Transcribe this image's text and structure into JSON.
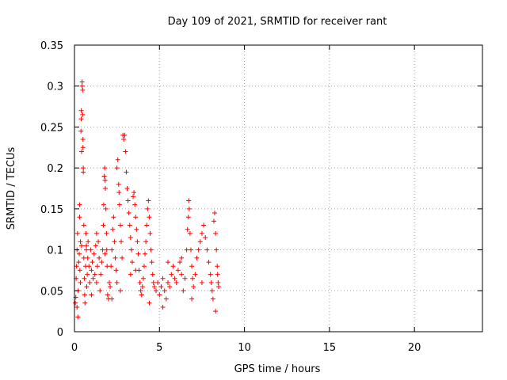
{
  "chart_data": {
    "type": "scatter",
    "title": "Day 109 of 2021, SRMTID for receiver rant",
    "xlabel": "GPS time / hours",
    "ylabel": "SRMTID / TECUs",
    "xlim": [
      0,
      24
    ],
    "ylim": [
      0,
      0.35
    ],
    "x_ticks": [
      0,
      5,
      10,
      15,
      20
    ],
    "y_ticks": [
      0,
      0.05,
      0.1,
      0.15,
      0.2,
      0.25,
      0.3,
      0.35
    ],
    "x_tick_labels": [
      "0",
      "5",
      "10",
      "15",
      "20"
    ],
    "y_tick_labels": [
      "0",
      "0.05",
      "0.1",
      "0.15",
      "0.2",
      "0.25",
      "0.3",
      "0.35"
    ],
    "grid": true,
    "marker": "+",
    "color": "#ff0000",
    "series": [
      {
        "points": [
          [
            0.05,
            0.035
          ],
          [
            0.08,
            0.042
          ],
          [
            0.1,
            0.065
          ],
          [
            0.12,
            0.08
          ],
          [
            0.15,
            0.1
          ],
          [
            0.15,
            0.03
          ],
          [
            0.18,
            0.12
          ],
          [
            0.2,
            0.018
          ],
          [
            0.22,
            0.05
          ],
          [
            0.25,
            0.085
          ],
          [
            0.28,
            0.095
          ],
          [
            0.3,
            0.14
          ],
          [
            0.3,
            0.155
          ],
          [
            0.32,
            0.075
          ],
          [
            0.35,
            0.11
          ],
          [
            0.35,
            0.06
          ],
          [
            0.38,
            0.245
          ],
          [
            0.4,
            0.27
          ],
          [
            0.4,
            0.26
          ],
          [
            0.42,
            0.22
          ],
          [
            0.42,
            0.105
          ],
          [
            0.45,
            0.3
          ],
          [
            0.45,
            0.305
          ],
          [
            0.48,
            0.295
          ],
          [
            0.48,
            0.265
          ],
          [
            0.5,
            0.235
          ],
          [
            0.5,
            0.225
          ],
          [
            0.52,
            0.195
          ],
          [
            0.52,
            0.2
          ],
          [
            0.55,
            0.13
          ],
          [
            0.55,
            0.09
          ],
          [
            0.58,
            0.065
          ],
          [
            0.6,
            0.045
          ],
          [
            0.62,
            0.035
          ],
          [
            0.65,
            0.08
          ],
          [
            0.68,
            0.12
          ],
          [
            0.7,
            0.1
          ],
          [
            0.72,
            0.055
          ],
          [
            0.75,
            0.07
          ],
          [
            0.78,
            0.09
          ],
          [
            0.8,
            0.11
          ],
          [
            0.85,
            0.08
          ],
          [
            0.9,
            0.06
          ],
          [
            0.95,
            0.1
          ],
          [
            1.0,
            0.075
          ],
          [
            1.05,
            0.085
          ],
          [
            1.1,
            0.065
          ],
          [
            1.15,
            0.095
          ],
          [
            1.2,
            0.07
          ],
          [
            1.25,
            0.105
          ],
          [
            1.3,
            0.06
          ],
          [
            1.35,
            0.08
          ],
          [
            1.4,
            0.11
          ],
          [
            1.45,
            0.09
          ],
          [
            1.5,
            0.05
          ],
          [
            1.55,
            0.07
          ],
          [
            1.6,
            0.085
          ],
          [
            1.65,
            0.1
          ],
          [
            1.7,
            0.13
          ],
          [
            1.72,
            0.155
          ],
          [
            1.75,
            0.19
          ],
          [
            1.78,
            0.2
          ],
          [
            1.8,
            0.185
          ],
          [
            1.82,
            0.175
          ],
          [
            1.85,
            0.15
          ],
          [
            1.88,
            0.12
          ],
          [
            1.9,
            0.1
          ],
          [
            1.92,
            0.08
          ],
          [
            1.95,
            0.045
          ],
          [
            2.0,
            0.04
          ],
          [
            2.05,
            0.06
          ],
          [
            2.1,
            0.055
          ],
          [
            2.15,
            0.08
          ],
          [
            2.2,
            0.1
          ],
          [
            2.25,
            0.125
          ],
          [
            2.3,
            0.14
          ],
          [
            2.35,
            0.11
          ],
          [
            2.4,
            0.09
          ],
          [
            2.45,
            0.075
          ],
          [
            2.5,
            0.06
          ],
          [
            2.5,
            0.2
          ],
          [
            2.55,
            0.21
          ],
          [
            2.6,
            0.18
          ],
          [
            2.62,
            0.17
          ],
          [
            2.65,
            0.155
          ],
          [
            2.7,
            0.13
          ],
          [
            2.75,
            0.11
          ],
          [
            2.8,
            0.09
          ],
          [
            2.85,
            0.24
          ],
          [
            2.9,
            0.235
          ],
          [
            2.95,
            0.24
          ],
          [
            3.0,
            0.22
          ],
          [
            3.05,
            0.195
          ],
          [
            3.1,
            0.175
          ],
          [
            3.15,
            0.16
          ],
          [
            3.2,
            0.145
          ],
          [
            3.25,
            0.13
          ],
          [
            3.3,
            0.115
          ],
          [
            3.35,
            0.1
          ],
          [
            3.4,
            0.085
          ],
          [
            3.45,
            0.165
          ],
          [
            3.5,
            0.17
          ],
          [
            3.55,
            0.155
          ],
          [
            3.6,
            0.14
          ],
          [
            3.65,
            0.125
          ],
          [
            3.7,
            0.11
          ],
          [
            3.75,
            0.095
          ],
          [
            3.8,
            0.075
          ],
          [
            3.85,
            0.06
          ],
          [
            3.9,
            0.05
          ],
          [
            3.95,
            0.045
          ],
          [
            4.0,
            0.055
          ],
          [
            4.05,
            0.065
          ],
          [
            4.1,
            0.08
          ],
          [
            4.15,
            0.095
          ],
          [
            4.2,
            0.11
          ],
          [
            4.25,
            0.13
          ],
          [
            4.3,
            0.15
          ],
          [
            4.35,
            0.16
          ],
          [
            4.4,
            0.14
          ],
          [
            4.45,
            0.12
          ],
          [
            4.5,
            0.1
          ],
          [
            4.55,
            0.085
          ],
          [
            4.6,
            0.07
          ],
          [
            4.65,
            0.06
          ],
          [
            4.7,
            0.055
          ],
          [
            4.8,
            0.05
          ],
          [
            4.9,
            0.06
          ],
          [
            5.0,
            0.045
          ],
          [
            5.1,
            0.055
          ],
          [
            5.2,
            0.065
          ],
          [
            5.3,
            0.05
          ],
          [
            5.4,
            0.04
          ],
          [
            5.5,
            0.06
          ],
          [
            5.6,
            0.055
          ],
          [
            5.7,
            0.07
          ],
          [
            5.8,
            0.08
          ],
          [
            5.9,
            0.065
          ],
          [
            6.0,
            0.06
          ],
          [
            6.1,
            0.075
          ],
          [
            6.2,
            0.085
          ],
          [
            6.3,
            0.07
          ],
          [
            6.4,
            0.05
          ],
          [
            6.5,
            0.065
          ],
          [
            6.6,
            0.1
          ],
          [
            6.65,
            0.125
          ],
          [
            6.7,
            0.14
          ],
          [
            6.72,
            0.16
          ],
          [
            6.75,
            0.15
          ],
          [
            6.8,
            0.12
          ],
          [
            6.85,
            0.1
          ],
          [
            6.9,
            0.08
          ],
          [
            6.95,
            0.065
          ],
          [
            7.0,
            0.055
          ],
          [
            7.1,
            0.07
          ],
          [
            7.2,
            0.09
          ],
          [
            7.3,
            0.1
          ],
          [
            7.4,
            0.11
          ],
          [
            7.5,
            0.12
          ],
          [
            7.6,
            0.13
          ],
          [
            7.7,
            0.115
          ],
          [
            7.8,
            0.1
          ],
          [
            7.9,
            0.085
          ],
          [
            8.0,
            0.07
          ],
          [
            8.05,
            0.06
          ],
          [
            8.1,
            0.05
          ],
          [
            8.15,
            0.04
          ],
          [
            8.2,
            0.135
          ],
          [
            8.25,
            0.145
          ],
          [
            8.3,
            0.12
          ],
          [
            8.35,
            0.1
          ],
          [
            8.4,
            0.08
          ],
          [
            8.42,
            0.07
          ],
          [
            8.45,
            0.06
          ],
          [
            8.48,
            0.055
          ],
          [
            8.3,
            0.025
          ],
          [
            1.3,
            0.12
          ],
          [
            2.2,
            0.04
          ],
          [
            3.6,
            0.075
          ],
          [
            5.5,
            0.085
          ],
          [
            6.3,
            0.09
          ],
          [
            7.5,
            0.06
          ],
          [
            4.4,
            0.035
          ],
          [
            1.0,
            0.045
          ],
          [
            2.7,
            0.05
          ],
          [
            3.3,
            0.07
          ],
          [
            6.9,
            0.04
          ],
          [
            0.7,
            0.105
          ],
          [
            1.8,
            0.095
          ],
          [
            5.2,
            0.03
          ]
        ]
      }
    ]
  }
}
